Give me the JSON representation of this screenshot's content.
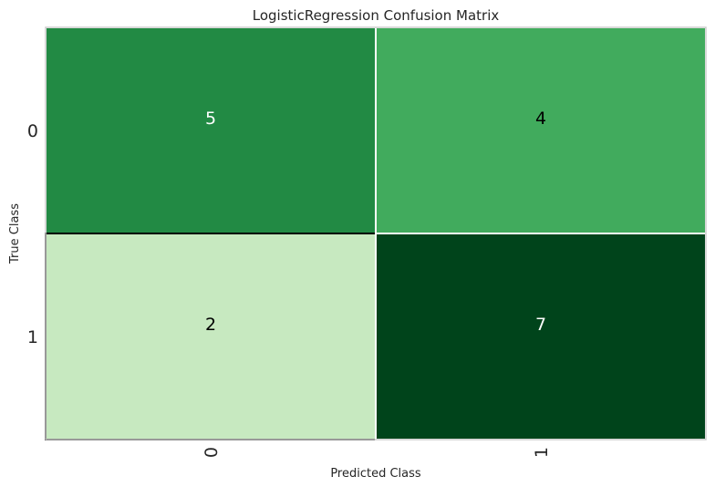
{
  "chart_data": {
    "type": "heatmap",
    "title": "LogisticRegression Confusion Matrix",
    "xlabel": "Predicted Class",
    "ylabel": "True Class",
    "x_categories": [
      "0",
      "1"
    ],
    "y_categories": [
      "0",
      "1"
    ],
    "values": [
      [
        5,
        4
      ],
      [
        2,
        7
      ]
    ],
    "colormap": "Greens",
    "cell_colors": [
      [
        "#228a44",
        "#41ab5d"
      ],
      [
        "#c7e9c0",
        "#00441b"
      ]
    ],
    "text_colors": [
      [
        "#ffffff",
        "#000000"
      ],
      [
        "#000000",
        "#ffffff"
      ]
    ],
    "grid": false
  },
  "colors": {
    "cell_border_light": "#ffffff",
    "cell_border_dark": "#000000",
    "frame": "#cccccc"
  }
}
